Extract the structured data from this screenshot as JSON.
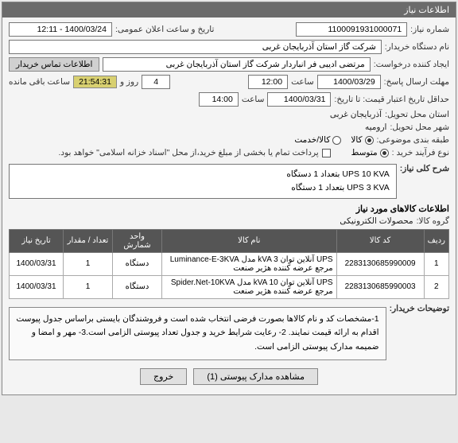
{
  "panel_title": "اطلاعات نیاز",
  "fields": {
    "need_no_label": "شماره نیاز:",
    "need_no": "1100091931000071",
    "announce_label": "تاریخ و ساعت اعلان عمومی:",
    "announce": "1400/03/24 - 12:11",
    "buyer_label": "نام دستگاه خریدار:",
    "buyer": "شرکت گاز استان آذربایجان غربی",
    "creator_label": "ایجاد کننده درخواست:",
    "creator": "مرتضی ادیبی فر انباردار شرکت گاز استان آذربایجان غربی",
    "contact_btn": "اطلاعات تماس خریدار",
    "deadline_label": "مهلت ارسال پاسخ:",
    "deadline_date": "1400/03/29",
    "hour_label": "ساعت",
    "deadline_time": "12:00",
    "days_left": "4",
    "days_label": "روز و",
    "timer": "21:54:31",
    "timer_label": "ساعت باقی مانده",
    "min_valid_label": "حداقل تاریخ اعتبار قیمت: تا تاریخ:",
    "min_valid_date": "1400/03/31",
    "min_valid_time": "14:00",
    "province_label": "استان محل تحویل:",
    "province": "آذربایجان غربی",
    "city_label": "شهر محل تحویل:",
    "city": "ارومیه",
    "budget_label": "طبقه بندی موضوعی:",
    "budget_opts": {
      "kala": "کالا",
      "khadamat": "کالا/خدمت"
    },
    "process_label": "نوع فرآیند خرید :",
    "process_opts": {
      "motavasset": "متوسط"
    },
    "pay_note": "پرداخت تمام یا بخشی از مبلغ خرید،از محل \"اسناد خزانه اسلامی\" خواهد بود.",
    "summary_label": "شرح کلی نیاز:",
    "summary": "UPS 10 KVA بتعداد 1 دستگاه\nUPS 3 KVA بتعداد 1 دستگاه",
    "items_header": "اطلاعات کالاهای مورد نیاز",
    "group_label": "گروه کالا:",
    "group": "محصولات الکترونیکی"
  },
  "table": {
    "cols": [
      "ردیف",
      "کد کالا",
      "نام کالا",
      "واحد شمارش",
      "تعداد / مقدار",
      "تاریخ نیاز"
    ],
    "rows": [
      [
        "1",
        "2283130685990009",
        "UPS آنلاین توان kVA 3 مدل Luminance-E-3KVA مرجع عرضه کننده هژیر صنعت",
        "دستگاه",
        "1",
        "1400/03/31"
      ],
      [
        "2",
        "2283130685990003",
        "UPS آنلاین توان kVA 10 مدل Spider.Net-10KVA مرجع عرضه کننده هژیر صنعت",
        "دستگاه",
        "1",
        "1400/03/31"
      ]
    ],
    "col_widths": [
      "30px",
      "110px",
      "auto",
      "62px",
      "62px",
      "68px"
    ]
  },
  "notes_label": "توضیحات خریدار:",
  "notes": "1-مشخصات کد و نام کالاها بصورت فرضی انتخاب شده است و فروشندگان بایستی براساس جدول پیوست اقدام به ارائه قیمت نمایند. 2- رعایت شرایط خرید و جدول تعداد پیوستی الزامی است.3- مهر و امضا و ضمیمه مدارک پیوستی الزامی است.",
  "footer": {
    "attach": "مشاهده مدارک پیوستی (1)",
    "close": "خروج"
  },
  "colors": {
    "header_bg": "#6b6b6b",
    "timer_bg": "#d8d070",
    "th_bg": "#555"
  }
}
